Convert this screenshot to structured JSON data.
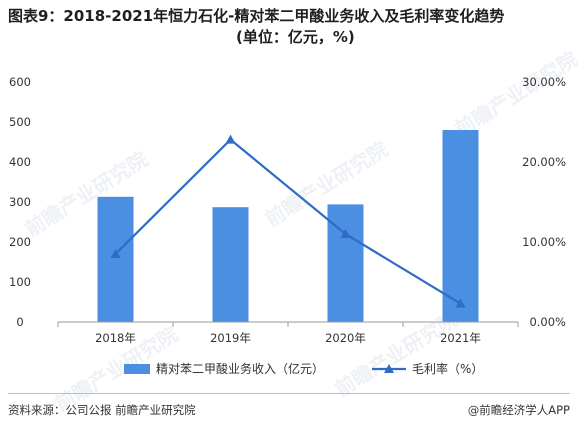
{
  "title_line1": "图表9：2018-2021年恒力石化-精对苯二甲酸业务收入及毛利率变化趋势",
  "title_line2": "(单位：亿元，%)",
  "watermark_text": "前瞻产业研究院",
  "colors": {
    "bar": "#4a8fe2",
    "line": "#2e6cc7",
    "axis": "#999999"
  },
  "chart_data": {
    "type": "bar",
    "categories": [
      "2018年",
      "2019年",
      "2020年",
      "2021年"
    ],
    "series": [
      {
        "name": "精对苯二甲酸业务收入（亿元）",
        "type": "bar",
        "axis": "left",
        "values": [
          313,
          287,
          294,
          480
        ]
      },
      {
        "name": "毛利率（%）",
        "type": "line",
        "axis": "right",
        "values": [
          8.5,
          22.8,
          11.0,
          2.3
        ]
      }
    ],
    "ylim_left": [
      0,
      600
    ],
    "yticks_left": [
      "0",
      "100",
      "200",
      "300",
      "400",
      "500",
      "600"
    ],
    "ylim_right": [
      0,
      30
    ],
    "yticks_right": [
      "0.00%",
      "10.00%",
      "20.00%",
      "30.00%"
    ],
    "grid": false,
    "legend": "bottom"
  },
  "footer": {
    "source": "资料来源：公司公报 前瞻产业研究院",
    "brand": "@前瞻经济学人APP"
  }
}
